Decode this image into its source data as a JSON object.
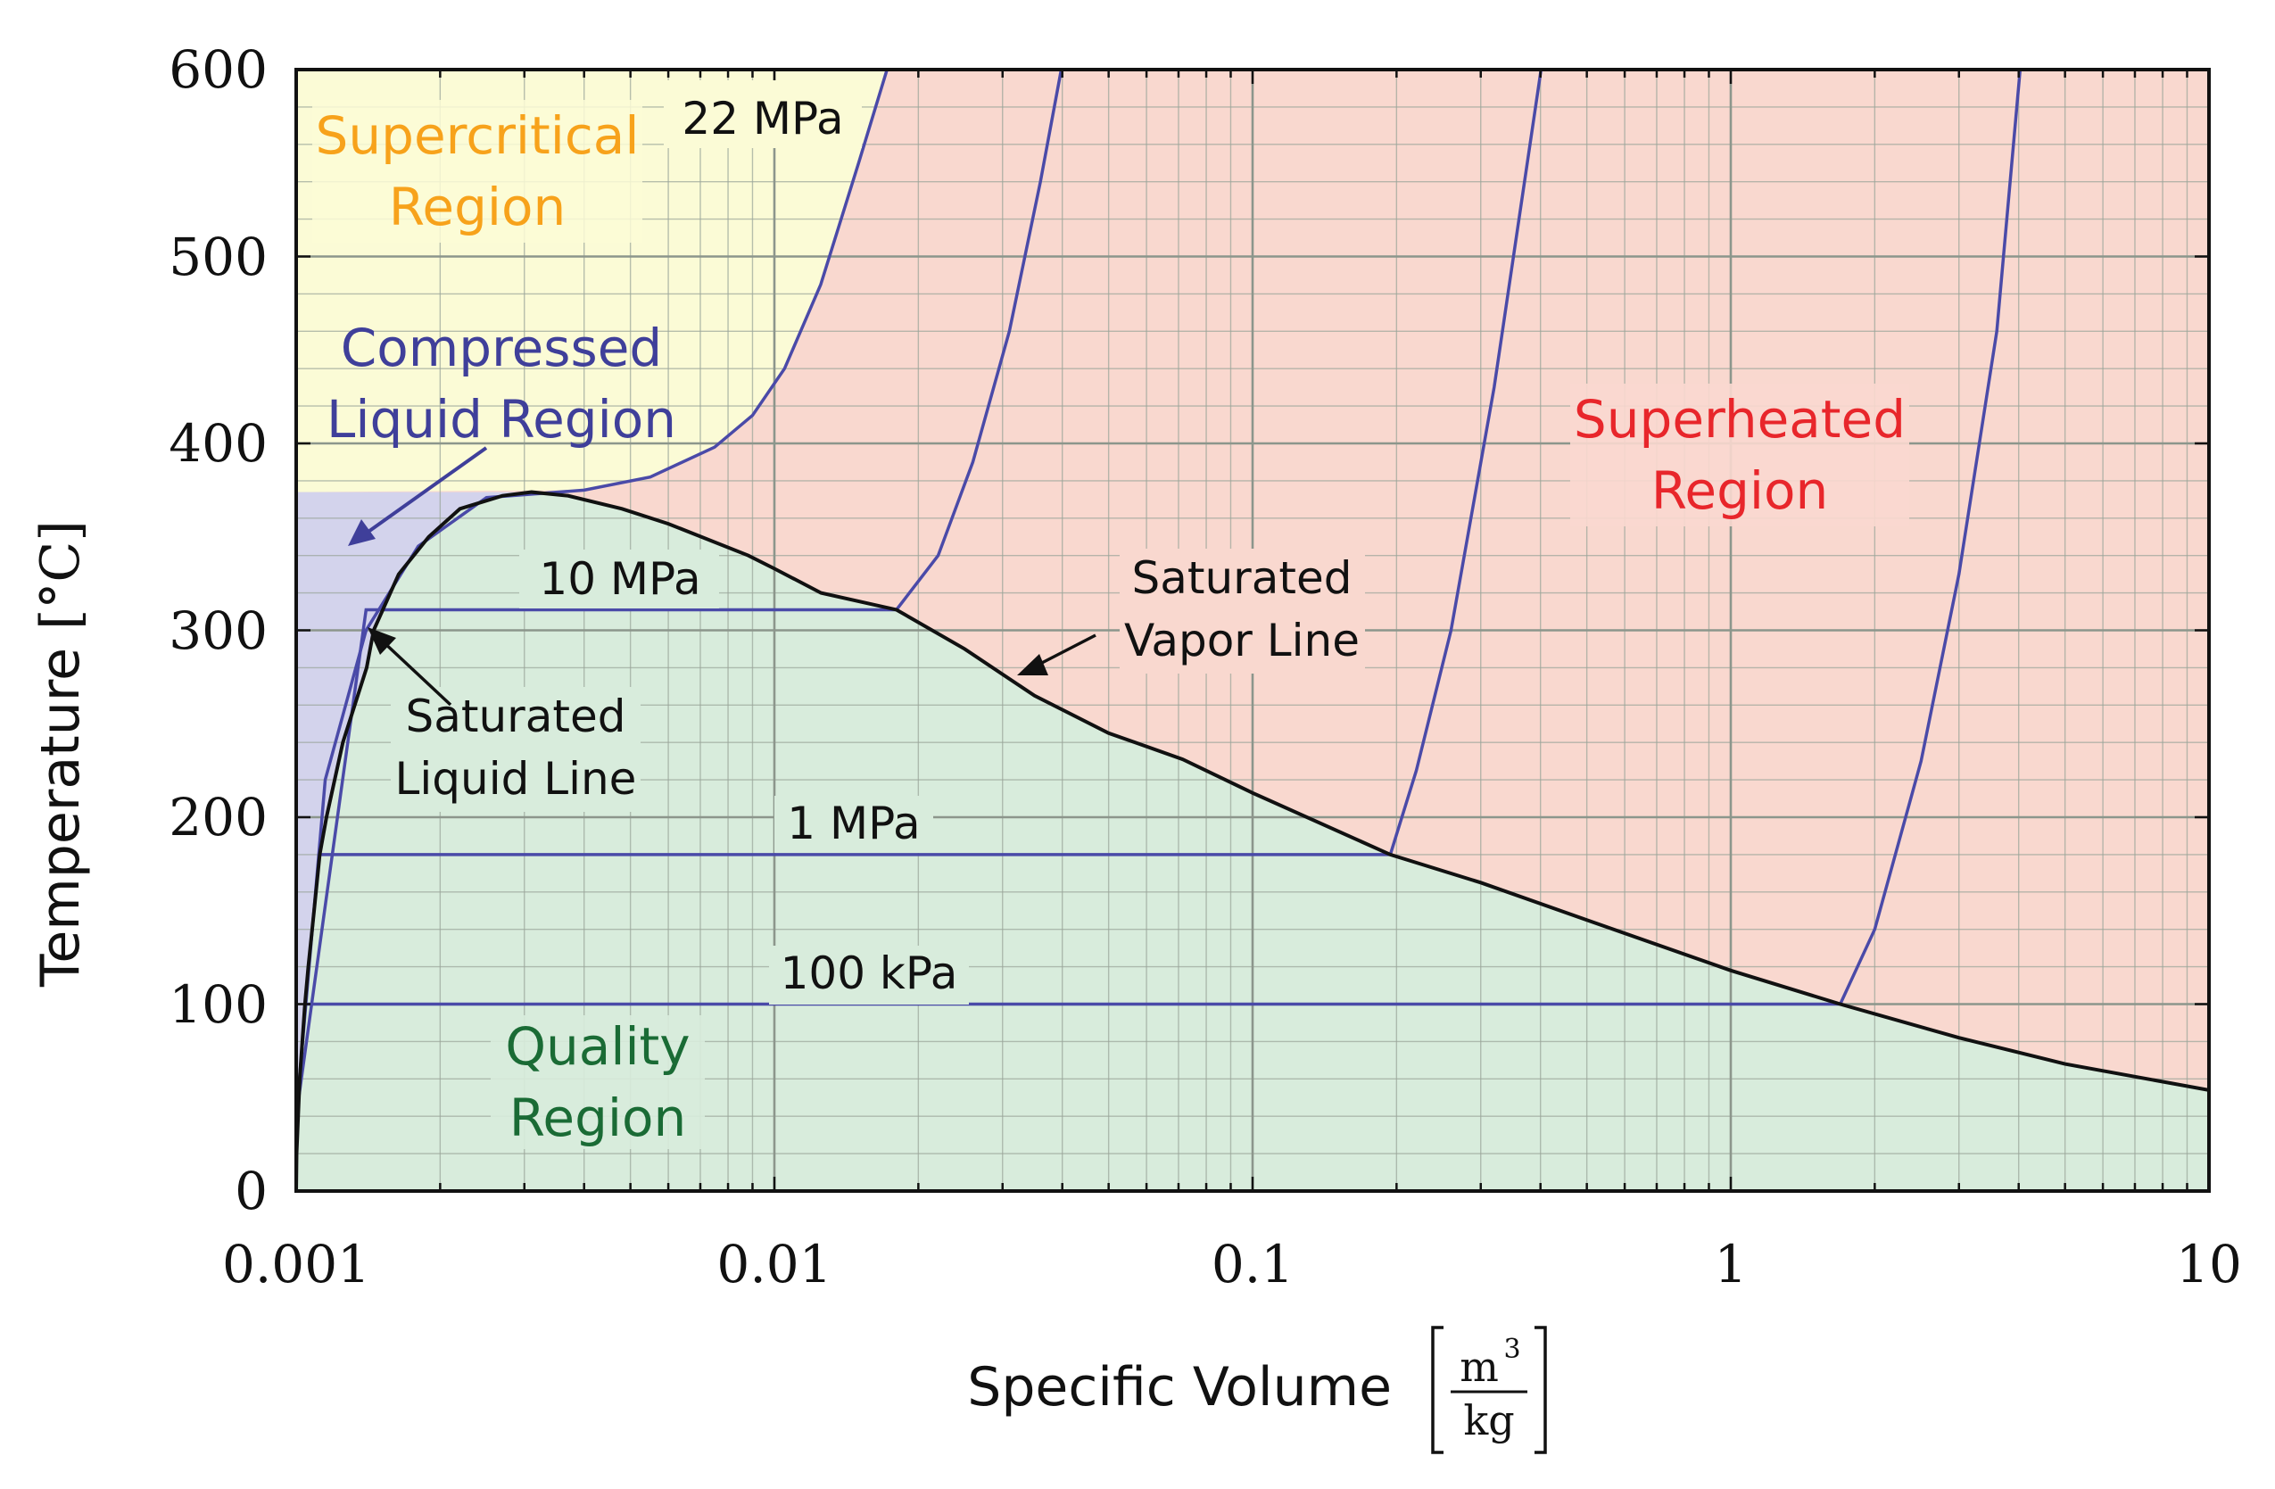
{
  "chart_data": {
    "type": "line",
    "xlabel": "Specific Volume",
    "xlabel_unit": {
      "numerator": "m",
      "exponent": "3",
      "denominator": "kg"
    },
    "ylabel": "Temperature",
    "ylabel_unit": "[°C]",
    "x_scale": "log",
    "xlim": [
      0.001,
      10
    ],
    "ylim": [
      0,
      600
    ],
    "x_ticks": [
      {
        "value": 0.001,
        "label": "0.001"
      },
      {
        "value": 0.01,
        "label": "0.01"
      },
      {
        "value": 0.1,
        "label": "0.1"
      },
      {
        "value": 1,
        "label": "1"
      },
      {
        "value": 10,
        "label": "10"
      }
    ],
    "y_ticks": [
      {
        "value": 0,
        "label": "0"
      },
      {
        "value": 100,
        "label": "100"
      },
      {
        "value": 200,
        "label": "200"
      },
      {
        "value": 300,
        "label": "300"
      },
      {
        "value": 400,
        "label": "400"
      },
      {
        "value": 500,
        "label": "500"
      },
      {
        "value": 600,
        "label": "600"
      }
    ],
    "grid": true,
    "regions": [
      {
        "key": "supercritical",
        "lines": [
          "Supercritical",
          "Region"
        ],
        "color": "#f7a21b",
        "fill": "#fbfbd6"
      },
      {
        "key": "compressed",
        "lines": [
          "Compressed",
          "Liquid Region"
        ],
        "color": "#3f3f9a",
        "fill": "#d3d3ec"
      },
      {
        "key": "superheated",
        "lines": [
          "Superheated",
          "Region"
        ],
        "color": "#e8262b",
        "fill": "#f9d8cf"
      },
      {
        "key": "quality",
        "lines": [
          "Quality",
          "Region"
        ],
        "color": "#1a6b35",
        "fill": "#d8ecdc"
      }
    ],
    "saturation_dome": {
      "critical_point": {
        "v": 0.003106,
        "T": 373.95
      },
      "liquid": [
        {
          "v": 0.001,
          "T": 0
        },
        {
          "v": 0.001002,
          "T": 20
        },
        {
          "v": 0.001017,
          "T": 60
        },
        {
          "v": 0.001043,
          "T": 100
        },
        {
          "v": 0.00106,
          "T": 120
        },
        {
          "v": 0.00109,
          "T": 150
        },
        {
          "v": 0.00112,
          "T": 180
        },
        {
          "v": 0.001157,
          "T": 200
        },
        {
          "v": 0.001252,
          "T": 240
        },
        {
          "v": 0.001404,
          "T": 280
        },
        {
          "v": 0.001452,
          "T": 300
        },
        {
          "v": 0.001638,
          "T": 330
        },
        {
          "v": 0.001893,
          "T": 350
        },
        {
          "v": 0.0022,
          "T": 365
        },
        {
          "v": 0.0027,
          "T": 372
        },
        {
          "v": 0.003106,
          "T": 373.95
        }
      ],
      "vapor": [
        {
          "v": 0.003106,
          "T": 373.95
        },
        {
          "v": 0.0037,
          "T": 372
        },
        {
          "v": 0.0048,
          "T": 365
        },
        {
          "v": 0.006,
          "T": 357
        },
        {
          "v": 0.008822,
          "T": 340
        },
        {
          "v": 0.01,
          "T": 333
        },
        {
          "v": 0.01252,
          "T": 320
        },
        {
          "v": 0.018,
          "T": 311
        },
        {
          "v": 0.025,
          "T": 290
        },
        {
          "v": 0.035,
          "T": 265
        },
        {
          "v": 0.05,
          "T": 245
        },
        {
          "v": 0.0714,
          "T": 231
        },
        {
          "v": 0.1,
          "T": 213
        },
        {
          "v": 0.1941,
          "T": 180
        },
        {
          "v": 0.3,
          "T": 165
        },
        {
          "v": 0.5,
          "T": 145
        },
        {
          "v": 1,
          "T": 118
        },
        {
          "v": 1.694,
          "T": 100
        },
        {
          "v": 3,
          "T": 82
        },
        {
          "v": 5,
          "T": 68
        },
        {
          "v": 10,
          "T": 54
        }
      ]
    },
    "series": [
      {
        "name": "22 MPa",
        "color": "#4a4aa8",
        "points": [
          {
            "v": 0.001,
            "T": 40
          },
          {
            "v": 0.00115,
            "T": 220
          },
          {
            "v": 0.0014,
            "T": 300
          },
          {
            "v": 0.0018,
            "T": 345
          },
          {
            "v": 0.0025,
            "T": 371
          },
          {
            "v": 0.004,
            "T": 375
          },
          {
            "v": 0.0055,
            "T": 382
          },
          {
            "v": 0.0075,
            "T": 398
          },
          {
            "v": 0.009,
            "T": 415
          },
          {
            "v": 0.0105,
            "T": 440
          },
          {
            "v": 0.0125,
            "T": 485
          },
          {
            "v": 0.015,
            "T": 550
          },
          {
            "v": 0.0172,
            "T": 600
          }
        ]
      },
      {
        "name": "10 MPa",
        "color": "#4a4aa8",
        "points": [
          {
            "v": 0.001,
            "T": 40
          },
          {
            "v": 0.0014,
            "T": 311
          },
          {
            "v": 0.018,
            "T": 311
          },
          {
            "v": 0.022,
            "T": 340
          },
          {
            "v": 0.026,
            "T": 390
          },
          {
            "v": 0.031,
            "T": 460
          },
          {
            "v": 0.036,
            "T": 540
          },
          {
            "v": 0.0398,
            "T": 600
          }
        ]
      },
      {
        "name": "1 MPa",
        "color": "#4a4aa8",
        "points": [
          {
            "v": 0.00112,
            "T": 180
          },
          {
            "v": 0.1941,
            "T": 180
          },
          {
            "v": 0.22,
            "T": 225
          },
          {
            "v": 0.26,
            "T": 300
          },
          {
            "v": 0.32,
            "T": 430
          },
          {
            "v": 0.4011,
            "T": 600
          }
        ]
      },
      {
        "name": "100 kPa",
        "color": "#4a4aa8",
        "points": [
          {
            "v": 0.001043,
            "T": 100
          },
          {
            "v": 1.694,
            "T": 100
          },
          {
            "v": 2.0,
            "T": 140
          },
          {
            "v": 2.5,
            "T": 230
          },
          {
            "v": 3.0,
            "T": 330
          },
          {
            "v": 3.6,
            "T": 460
          },
          {
            "v": 4.028,
            "T": 600
          }
        ]
      }
    ],
    "annotations": [
      {
        "key": "sat_liquid",
        "lines": [
          "Saturated",
          "Liquid Line"
        ]
      },
      {
        "key": "sat_vapor",
        "lines": [
          "Saturated",
          "Vapor Line"
        ]
      }
    ]
  }
}
